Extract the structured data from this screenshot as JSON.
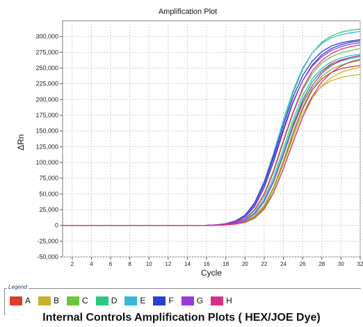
{
  "chart_data": {
    "type": "line",
    "title": "Amplification Plot",
    "xlabel": "Cycle",
    "ylabel": "ΔRn",
    "xlim": [
      1,
      32
    ],
    "ylim": [
      -50000,
      325000
    ],
    "x_ticks": [
      2,
      4,
      6,
      8,
      10,
      12,
      14,
      16,
      18,
      20,
      22,
      24,
      26,
      28,
      30,
      32
    ],
    "y_ticks": [
      -50000,
      -25000,
      0,
      25000,
      50000,
      75000,
      100000,
      125000,
      150000,
      175000,
      200000,
      225000,
      250000,
      275000,
      300000
    ],
    "y_tick_labels": [
      "-50,000",
      "-25,000",
      "0",
      "25,000",
      "50,000",
      "75,000",
      "100,000",
      "125,000",
      "150,000",
      "175,000",
      "200,000",
      "225,000",
      "250,000",
      "275,000",
      "300,000"
    ],
    "grid": true,
    "x": [
      1,
      2,
      3,
      4,
      5,
      6,
      7,
      8,
      9,
      10,
      11,
      12,
      13,
      14,
      15,
      16,
      17,
      18,
      19,
      20,
      21,
      22,
      23,
      24,
      25,
      26,
      27,
      28,
      29,
      30,
      31,
      32
    ],
    "series": [
      {
        "color": "#d8402a",
        "values": [
          0,
          0,
          0,
          0,
          0,
          0,
          0,
          0,
          0,
          0,
          0,
          0,
          0,
          0,
          0,
          0,
          500,
          1500,
          3500,
          8000,
          18000,
          38000,
          70000,
          112000,
          158000,
          198000,
          228000,
          246000,
          257000,
          263000,
          267000,
          270000
        ]
      },
      {
        "color": "#d8402a",
        "values": [
          0,
          0,
          0,
          0,
          0,
          0,
          0,
          0,
          0,
          0,
          0,
          0,
          0,
          0,
          0,
          0,
          300,
          1000,
          2500,
          6000,
          14000,
          30000,
          60000,
          100000,
          145000,
          185000,
          215000,
          233000,
          243000,
          249000,
          252000,
          254000
        ]
      },
      {
        "color": "#c8b02a",
        "values": [
          0,
          0,
          0,
          0,
          0,
          0,
          0,
          0,
          0,
          0,
          0,
          0,
          0,
          0,
          0,
          0,
          300,
          1000,
          2400,
          5800,
          13500,
          29000,
          58000,
          97000,
          140000,
          178000,
          205000,
          221000,
          230000,
          235000,
          238000,
          240000
        ]
      },
      {
        "color": "#c8b02a",
        "values": [
          0,
          0,
          0,
          0,
          0,
          0,
          0,
          0,
          0,
          0,
          0,
          0,
          0,
          0,
          0,
          0,
          200,
          700,
          1800,
          4500,
          11000,
          25000,
          52000,
          90000,
          133000,
          172000,
          202000,
          222000,
          235000,
          243000,
          248000,
          251000
        ]
      },
      {
        "color": "#6cc63a",
        "values": [
          0,
          0,
          0,
          0,
          0,
          0,
          0,
          0,
          0,
          0,
          0,
          0,
          0,
          0,
          0,
          0,
          300,
          1100,
          2700,
          6300,
          15000,
          32000,
          62000,
          103000,
          148000,
          188000,
          218000,
          237000,
          248000,
          255000,
          259000,
          262000
        ]
      },
      {
        "color": "#6cc63a",
        "values": [
          0,
          0,
          0,
          0,
          0,
          0,
          0,
          0,
          0,
          0,
          0,
          0,
          0,
          0,
          0,
          0,
          500,
          1700,
          4200,
          10000,
          23000,
          47000,
          85000,
          132000,
          178000,
          215000,
          241000,
          258000,
          268000,
          274000,
          278000,
          281000
        ]
      },
      {
        "color": "#2cc97a",
        "values": [
          0,
          0,
          0,
          0,
          0,
          0,
          0,
          0,
          0,
          0,
          0,
          0,
          0,
          0,
          0,
          0,
          800,
          2600,
          6500,
          15000,
          33000,
          65000,
          110000,
          162000,
          210000,
          248000,
          274000,
          291000,
          301000,
          307000,
          310000,
          312000
        ]
      },
      {
        "color": "#2cc97a",
        "values": [
          0,
          0,
          0,
          0,
          0,
          0,
          0,
          0,
          0,
          0,
          0,
          0,
          0,
          0,
          0,
          0,
          400,
          1400,
          3400,
          8000,
          18500,
          39000,
          72000,
          116000,
          162000,
          200000,
          228000,
          245000,
          255000,
          261000,
          265000,
          268000
        ]
      },
      {
        "color": "#38b8d8",
        "values": [
          0,
          0,
          0,
          0,
          0,
          0,
          0,
          0,
          0,
          0,
          0,
          0,
          0,
          0,
          0,
          0,
          900,
          2900,
          7200,
          16500,
          36000,
          70000,
          116000,
          168000,
          214000,
          250000,
          274000,
          289000,
          298000,
          303000,
          306000,
          308000
        ]
      },
      {
        "color": "#38b8d8",
        "values": [
          0,
          0,
          0,
          0,
          0,
          0,
          0,
          0,
          0,
          0,
          0,
          0,
          0,
          0,
          0,
          0,
          450,
          1500,
          3700,
          8700,
          20000,
          42000,
          77000,
          122000,
          168000,
          206000,
          233000,
          250000,
          260000,
          266000,
          270000,
          272000
        ]
      },
      {
        "color": "#2a3fcf",
        "values": [
          0,
          0,
          0,
          0,
          0,
          0,
          0,
          0,
          0,
          0,
          0,
          0,
          0,
          0,
          0,
          0,
          850,
          2800,
          7000,
          16000,
          35000,
          68000,
          112000,
          160000,
          204000,
          238000,
          261000,
          276000,
          285000,
          290000,
          293000,
          295000
        ]
      },
      {
        "color": "#2a3fcf",
        "values": [
          0,
          0,
          0,
          0,
          0,
          0,
          0,
          0,
          0,
          0,
          0,
          0,
          0,
          0,
          0,
          0,
          700,
          2300,
          5800,
          13500,
          30000,
          60000,
          102000,
          150000,
          195000,
          230000,
          255000,
          271000,
          281000,
          287000,
          291000,
          293000
        ]
      },
      {
        "color": "#9a3ad8",
        "values": [
          0,
          0,
          0,
          0,
          0,
          0,
          0,
          0,
          0,
          0,
          0,
          0,
          0,
          0,
          0,
          0,
          800,
          2600,
          6500,
          15000,
          33000,
          64000,
          107000,
          154000,
          197000,
          230000,
          253000,
          268000,
          278000,
          284000,
          288000,
          290000
        ]
      },
      {
        "color": "#9a3ad8",
        "values": [
          0,
          0,
          0,
          0,
          0,
          0,
          0,
          0,
          0,
          0,
          0,
          0,
          0,
          0,
          0,
          0,
          400,
          1300,
          3300,
          7800,
          18000,
          38000,
          70000,
          112000,
          156000,
          194000,
          222000,
          242000,
          254000,
          262000,
          267000,
          270000
        ]
      },
      {
        "color": "#d8308a",
        "values": [
          0,
          0,
          0,
          0,
          0,
          0,
          0,
          0,
          0,
          0,
          0,
          0,
          0,
          0,
          0,
          0,
          250,
          900,
          2200,
          5300,
          12500,
          27000,
          53000,
          90000,
          132000,
          172000,
          205000,
          228000,
          243000,
          253000,
          260000,
          264000
        ]
      },
      {
        "color": "#d8308a",
        "values": [
          0,
          0,
          0,
          0,
          0,
          0,
          0,
          0,
          0,
          0,
          0,
          0,
          0,
          0,
          0,
          0,
          550,
          1900,
          4700,
          11000,
          25000,
          50000,
          88000,
          135000,
          180000,
          218000,
          245000,
          262000,
          273000,
          280000,
          284000,
          287000
        ]
      }
    ]
  },
  "legend": {
    "title": "Legend",
    "items": [
      {
        "label": "A",
        "color": "#d8402a"
      },
      {
        "label": "B",
        "color": "#c8b02a"
      },
      {
        "label": "C",
        "color": "#6cc63a"
      },
      {
        "label": "D",
        "color": "#2cc97a"
      },
      {
        "label": "E",
        "color": "#38b8d8"
      },
      {
        "label": "F",
        "color": "#2a3fcf"
      },
      {
        "label": "G",
        "color": "#9a3ad8"
      },
      {
        "label": "H",
        "color": "#d8308a"
      }
    ]
  },
  "footer": {
    "title": "Internal Controls Amplification Plots ( HEX/JOE Dye)"
  }
}
